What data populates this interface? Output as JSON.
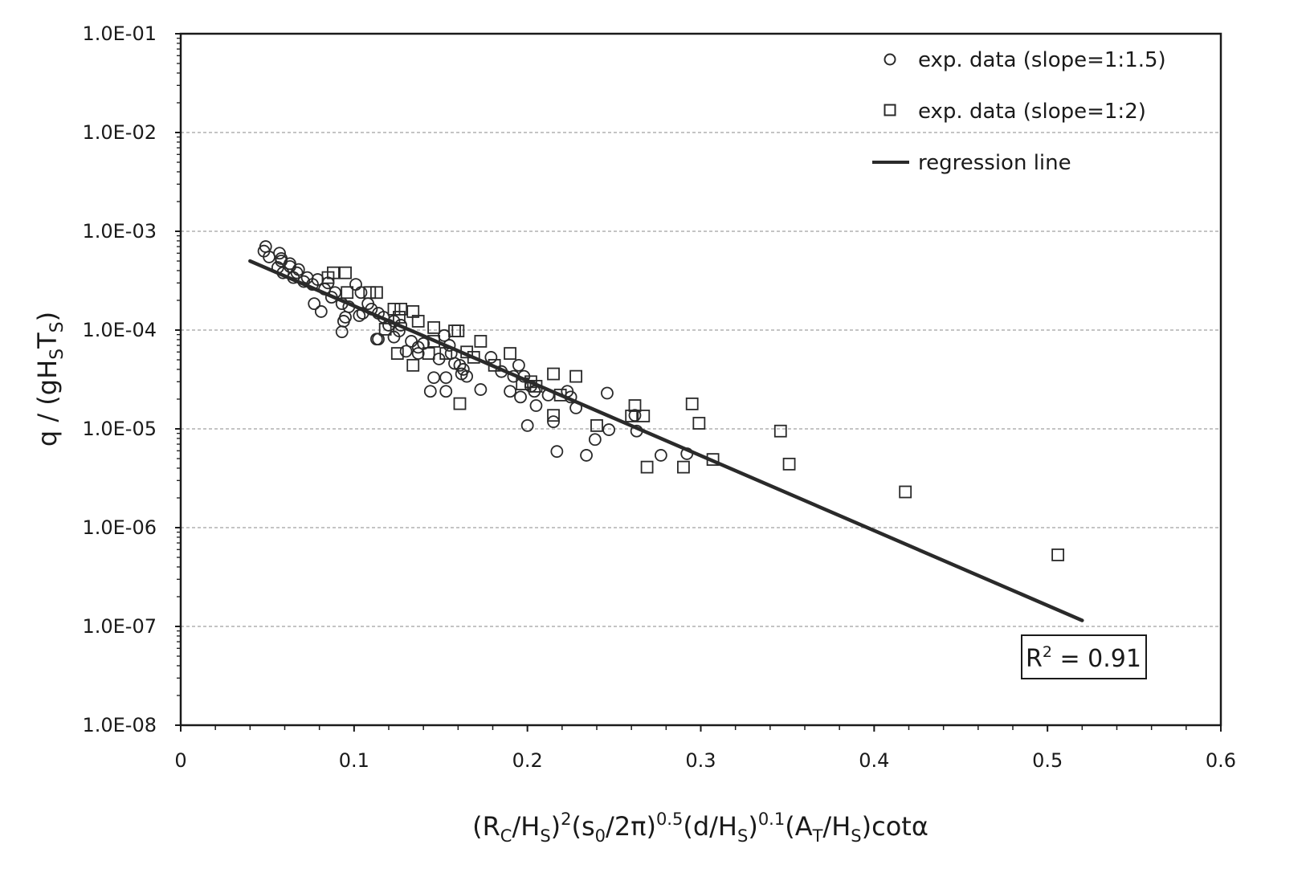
{
  "chart_data": {
    "type": "scatter",
    "xlabel_parts": [
      "(R",
      "C",
      "/H",
      "S",
      ")",
      "2",
      "(s",
      "0",
      "/2π)",
      "0.5",
      "(d/H",
      "S",
      ")",
      "0.1",
      "(A",
      "T",
      "/H",
      "S",
      ")cotα"
    ],
    "ylabel_parts": [
      "q / (gH",
      "S",
      "T",
      "S",
      ")"
    ],
    "xlim": [
      0,
      0.6
    ],
    "ylim": [
      1e-08,
      0.1
    ],
    "yscale": "log",
    "x_ticks": [
      0,
      0.1,
      0.2,
      0.3,
      0.4,
      0.5,
      0.6
    ],
    "x_tick_labels": [
      "0",
      "0.1",
      "0.2",
      "0.3",
      "0.4",
      "0.5",
      "0.6"
    ],
    "y_ticks": [
      0.1,
      0.01,
      0.001,
      0.0001,
      1e-05,
      1e-06,
      1e-07,
      1e-08
    ],
    "y_tick_labels": [
      "1.0E-01",
      "1.0E-02",
      "1.0E-03",
      "1.0E-04",
      "1.0E-05",
      "1.0E-06",
      "1.0E-07",
      "1.0E-08"
    ],
    "grid": "horizontal dashed at each decade",
    "legend_placement": "top-right",
    "colors": {
      "marker": "#2a2a2a",
      "line": "#2a2a2a",
      "grid": "#b0b0b0"
    },
    "series": [
      {
        "name": "exp. data (slope=1:1.5)",
        "marker": "circle",
        "points": [
          [
            0.049,
            0.0007
          ],
          [
            0.048,
            0.00063
          ],
          [
            0.051,
            0.00055
          ],
          [
            0.057,
            0.0006
          ],
          [
            0.058,
            0.00053
          ],
          [
            0.056,
            0.00043
          ],
          [
            0.059,
            0.00038
          ],
          [
            0.063,
            0.00044
          ],
          [
            0.065,
            0.00034
          ],
          [
            0.068,
            0.00041
          ],
          [
            0.071,
            0.00031
          ],
          [
            0.073,
            0.00034
          ],
          [
            0.076,
            0.00029
          ],
          [
            0.077,
            0.000185
          ],
          [
            0.081,
            0.000154
          ],
          [
            0.083,
            0.00026
          ],
          [
            0.087,
            0.000215
          ],
          [
            0.089,
            0.00024
          ],
          [
            0.093,
            0.000185
          ],
          [
            0.094,
            0.000123
          ],
          [
            0.093,
            9.6e-05
          ],
          [
            0.097,
            0.000172
          ],
          [
            0.101,
            0.00029
          ],
          [
            0.103,
            0.00014
          ],
          [
            0.105,
            0.000148
          ],
          [
            0.108,
            0.000185
          ],
          [
            0.11,
            0.000163
          ],
          [
            0.113,
            8.1e-05
          ],
          [
            0.114,
            8.1e-05
          ],
          [
            0.117,
            0.000135
          ],
          [
            0.12,
            0.000112
          ],
          [
            0.123,
            8.5e-05
          ],
          [
            0.126,
            9.8e-05
          ],
          [
            0.13,
            6.1e-05
          ],
          [
            0.133,
            7.7e-05
          ],
          [
            0.137,
            5.8e-05
          ],
          [
            0.14,
            7.3e-05
          ],
          [
            0.144,
            2.4e-05
          ],
          [
            0.146,
            3.3e-05
          ],
          [
            0.149,
            5.1e-05
          ],
          [
            0.152,
            8.8e-05
          ],
          [
            0.153,
            3.3e-05
          ],
          [
            0.153,
            2.4e-05
          ],
          [
            0.156,
            5.8e-05
          ],
          [
            0.158,
            4.6e-05
          ],
          [
            0.161,
            4.4e-05
          ],
          [
            0.163,
            4e-05
          ],
          [
            0.165,
            3.4e-05
          ],
          [
            0.173,
            2.5e-05
          ],
          [
            0.179,
            5.3e-05
          ],
          [
            0.185,
            3.8e-05
          ],
          [
            0.19,
            2.4e-05
          ],
          [
            0.192,
            3.4e-05
          ],
          [
            0.195,
            4.4e-05
          ],
          [
            0.196,
            2.1e-05
          ],
          [
            0.198,
            3.4e-05
          ],
          [
            0.2,
            1.08e-05
          ],
          [
            0.202,
            2.7e-05
          ],
          [
            0.204,
            2.4e-05
          ],
          [
            0.205,
            1.72e-05
          ],
          [
            0.212,
            2.2e-05
          ],
          [
            0.215,
            1.18e-05
          ],
          [
            0.217,
            5.9e-06
          ],
          [
            0.223,
            2.4e-05
          ],
          [
            0.225,
            2.1e-05
          ],
          [
            0.228,
            1.63e-05
          ],
          [
            0.234,
            5.4e-06
          ],
          [
            0.239,
            7.8e-06
          ],
          [
            0.246,
            2.3e-05
          ],
          [
            0.247,
            9.8e-06
          ],
          [
            0.262,
            1.37e-05
          ],
          [
            0.263,
            9.5e-06
          ],
          [
            0.277,
            5.4e-06
          ],
          [
            0.292,
            5.6e-06
          ],
          [
            0.058,
            0.0005
          ],
          [
            0.063,
            0.00047
          ],
          [
            0.067,
            0.00038
          ],
          [
            0.079,
            0.000325
          ],
          [
            0.085,
            0.0003
          ],
          [
            0.095,
            0.000135
          ],
          [
            0.104,
            0.00024
          ],
          [
            0.114,
            0.000148
          ],
          [
            0.123,
            0.000123
          ],
          [
            0.127,
            0.000112
          ],
          [
            0.137,
            6.7e-05
          ],
          [
            0.155,
            7e-05
          ],
          [
            0.162,
            3.6e-05
          ]
        ]
      },
      {
        "name": "exp. data (slope=1:2)",
        "marker": "square",
        "points": [
          [
            0.088,
            0.00038
          ],
          [
            0.085,
            0.00034
          ],
          [
            0.096,
            0.00024
          ],
          [
            0.109,
            0.00024
          ],
          [
            0.113,
            0.00024
          ],
          [
            0.123,
            0.000163
          ],
          [
            0.127,
            0.000163
          ],
          [
            0.126,
            0.000135
          ],
          [
            0.134,
            0.000154
          ],
          [
            0.146,
            0.000106
          ],
          [
            0.146,
            7.7e-05
          ],
          [
            0.158,
            9.8e-05
          ],
          [
            0.16,
            9.8e-05
          ],
          [
            0.143,
            5.8e-05
          ],
          [
            0.134,
            4.4e-05
          ],
          [
            0.125,
            5.8e-05
          ],
          [
            0.165,
            6e-05
          ],
          [
            0.173,
            7.7e-05
          ],
          [
            0.161,
            1.8e-05
          ],
          [
            0.181,
            4.4e-05
          ],
          [
            0.19,
            5.8e-05
          ],
          [
            0.202,
            3e-05
          ],
          [
            0.205,
            2.7e-05
          ],
          [
            0.215,
            3.6e-05
          ],
          [
            0.219,
            2.2e-05
          ],
          [
            0.228,
            3.4e-05
          ],
          [
            0.24,
            1.08e-05
          ],
          [
            0.26,
            1.35e-05
          ],
          [
            0.262,
            1.72e-05
          ],
          [
            0.267,
            1.35e-05
          ],
          [
            0.269,
            4.1e-06
          ],
          [
            0.29,
            4.1e-06
          ],
          [
            0.295,
            1.79e-05
          ],
          [
            0.299,
            1.14e-05
          ],
          [
            0.307,
            4.9e-06
          ],
          [
            0.346,
            9.5e-06
          ],
          [
            0.351,
            4.4e-06
          ],
          [
            0.418,
            2.3e-06
          ],
          [
            0.506,
            5.3e-07
          ],
          [
            0.095,
            0.00038
          ],
          [
            0.118,
            0.000102
          ],
          [
            0.153,
            5.8e-05
          ],
          [
            0.169,
            5.3e-05
          ],
          [
            0.215,
            1.37e-05
          ],
          [
            0.137,
            0.000123
          ],
          [
            0.197,
            2.85e-05
          ]
        ]
      },
      {
        "name": "regression line",
        "marker": "line",
        "points": [
          [
            0.04,
            0.0005
          ],
          [
            0.52,
            1.15e-07
          ]
        ]
      }
    ],
    "annotation": "R² = 0.91",
    "annotation_parts": [
      "R",
      "2",
      " = 0.91"
    ]
  }
}
